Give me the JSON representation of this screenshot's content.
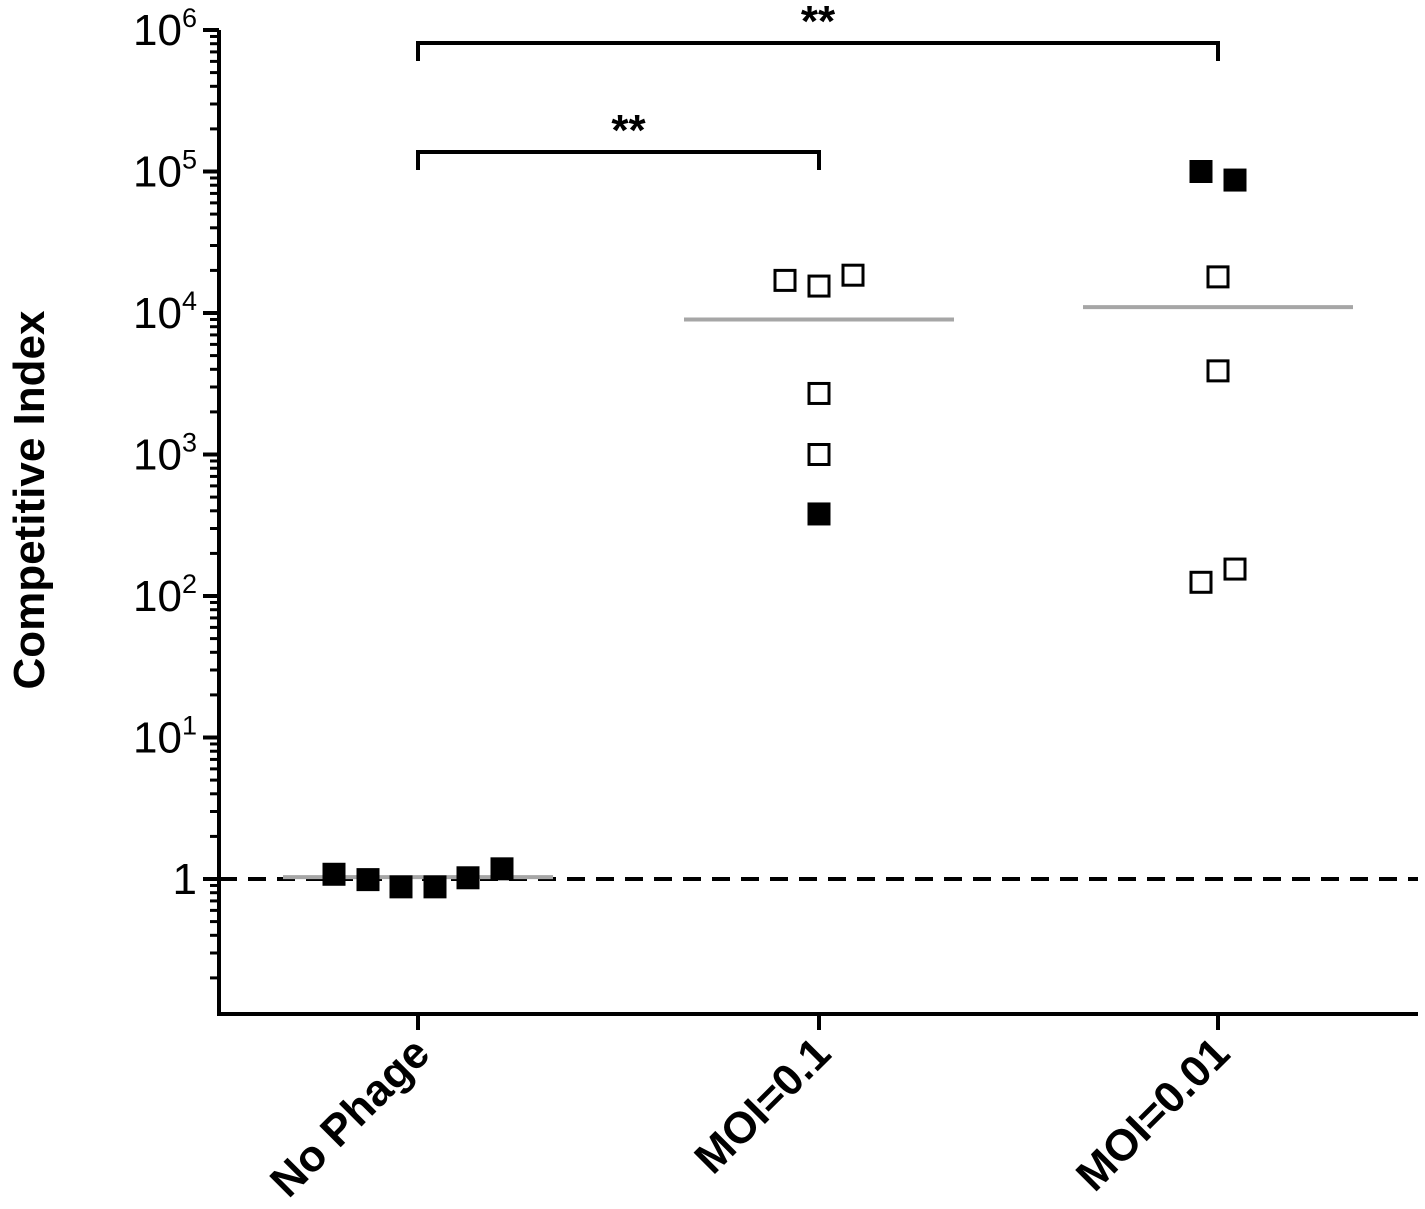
{
  "chart_data": {
    "type": "scatter",
    "title": "",
    "xlabel": "",
    "ylabel": "Competitive Index",
    "y_scale": "log",
    "ylim": [
      0.1,
      1000000
    ],
    "grid": false,
    "legend": "none",
    "categories": [
      "No Phage",
      "MOI=0.1",
      "MOI=0.01"
    ],
    "y_ticks": [
      {
        "value": 1,
        "base": "1",
        "exp": ""
      },
      {
        "value": 10,
        "base": "10",
        "exp": "1"
      },
      {
        "value": 100,
        "base": "10",
        "exp": "2"
      },
      {
        "value": 1000,
        "base": "10",
        "exp": "3"
      },
      {
        "value": 10000,
        "base": "10",
        "exp": "4"
      },
      {
        "value": 100000,
        "base": "10",
        "exp": "5"
      },
      {
        "value": 1000000,
        "base": "10",
        "exp": "6"
      }
    ],
    "reference_line": {
      "value": 1,
      "style": "dashed",
      "color": "#000000"
    },
    "points": [
      {
        "category": "No Phage",
        "value": 1.08,
        "filled": true
      },
      {
        "category": "No Phage",
        "value": 0.99,
        "filled": true
      },
      {
        "category": "No Phage",
        "value": 0.88,
        "filled": true
      },
      {
        "category": "No Phage",
        "value": 0.88,
        "filled": true
      },
      {
        "category": "No Phage",
        "value": 1.02,
        "filled": true
      },
      {
        "category": "No Phage",
        "value": 1.18,
        "filled": true
      },
      {
        "category": "MOI=0.1",
        "value": 17000,
        "filled": false
      },
      {
        "category": "MOI=0.1",
        "value": 15500,
        "filled": false
      },
      {
        "category": "MOI=0.1",
        "value": 18500,
        "filled": false
      },
      {
        "category": "MOI=0.1",
        "value": 2700,
        "filled": false
      },
      {
        "category": "MOI=0.1",
        "value": 1000,
        "filled": false
      },
      {
        "category": "MOI=0.1",
        "value": 380,
        "filled": true
      },
      {
        "category": "MOI=0.01",
        "value": 100000,
        "filled": true
      },
      {
        "category": "MOI=0.01",
        "value": 87000,
        "filled": true
      },
      {
        "category": "MOI=0.01",
        "value": 18000,
        "filled": false
      },
      {
        "category": "MOI=0.01",
        "value": 3900,
        "filled": false
      },
      {
        "category": "MOI=0.01",
        "value": 125,
        "filled": false
      },
      {
        "category": "MOI=0.01",
        "value": 155,
        "filled": false
      }
    ],
    "medians": [
      {
        "category": "No Phage",
        "value": 1.03
      },
      {
        "category": "MOI=0.1",
        "value": 9000
      },
      {
        "category": "MOI=0.01",
        "value": 11000
      }
    ],
    "significance": [
      {
        "from": "No Phage",
        "to": "MOI=0.1",
        "label": "**"
      },
      {
        "from": "No Phage",
        "to": "MOI=0.01",
        "label": "**"
      }
    ],
    "colors": {
      "axis": "#000000",
      "median": "#a6a6a6",
      "marker": "#000000"
    }
  }
}
